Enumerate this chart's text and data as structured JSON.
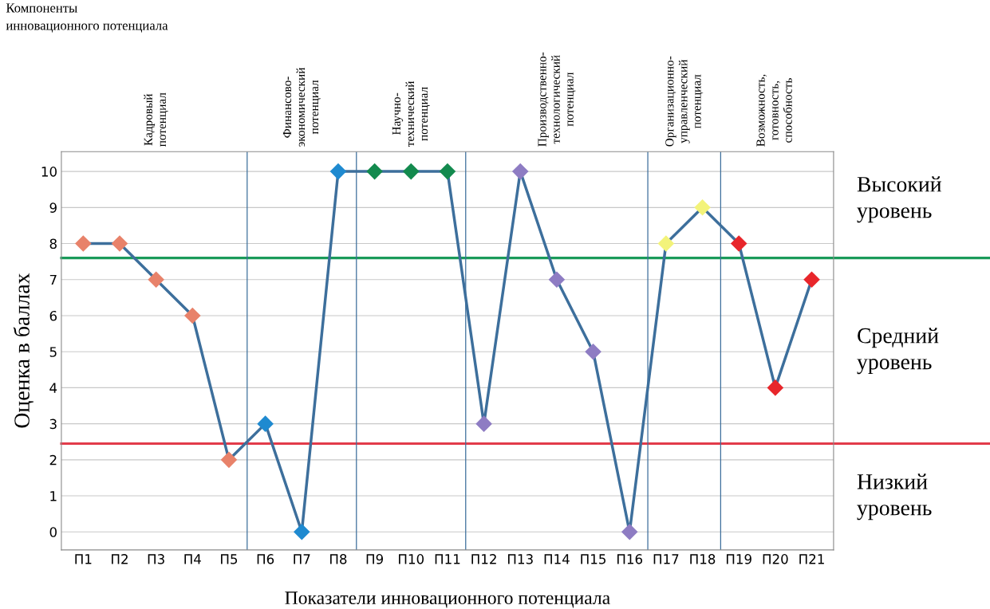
{
  "chart_data": {
    "type": "line",
    "xlabel": "Показатели инновационного потенциала",
    "ylabel": "Оценка в баллах",
    "categories": [
      "П1",
      "П2",
      "П3",
      "П4",
      "П5",
      "П6",
      "П7",
      "П8",
      "П9",
      "П10",
      "П11",
      "П12",
      "П13",
      "П14",
      "П15",
      "П16",
      "П17",
      "П18",
      "П19",
      "П20",
      "П21"
    ],
    "series": [
      {
        "color": "#3d6f9c",
        "values": [
          8,
          8,
          7,
          6,
          2,
          3,
          0,
          10,
          10,
          10,
          10,
          3,
          10,
          7,
          5,
          0,
          8,
          9,
          8,
          4,
          7
        ],
        "colors": [
          "#e8826a",
          "#e8826a",
          "#e8826a",
          "#e8826a",
          "#e8826a",
          "#1f8ad0",
          "#1f8ad0",
          "#1f8ad0",
          "#138a4e",
          "#138a4e",
          "#138a4e",
          "#8e7cc3",
          "#8e7cc3",
          "#8e7cc3",
          "#8e7cc3",
          "#8e7cc3",
          "#f3f37a",
          "#f3f37a",
          "#e8262b",
          "#e8262b",
          "#e8262b"
        ]
      }
    ],
    "marker": "diamond",
    "ylim": [
      -0.5,
      10.55
    ],
    "yticks": [
      0,
      1,
      2,
      3,
      4,
      5,
      6,
      7,
      8,
      9,
      10
    ],
    "grid": "y",
    "ref_lines": [
      {
        "axis": "y",
        "value": 7.6,
        "color": "#1a9a5a"
      },
      {
        "axis": "y",
        "value": 2.45,
        "color": "#e23b4a"
      }
    ],
    "annotations": [
      "Компоненты\nинновационного потенциала",
      "Кадровый\nпотенциал",
      "Финансово-\nэкономический\nпотенциал",
      "Научно-\nтехнический\nпотенциал",
      "Производственно-\nтехнологический\nпотенциал",
      "Организационно-\nуправленческий\nпотенциал",
      "Возможность,\nготовность,\nспособность",
      "Высокий\nуровень",
      "Средний\nуровень",
      "Низкий\nуровень"
    ]
  }
}
